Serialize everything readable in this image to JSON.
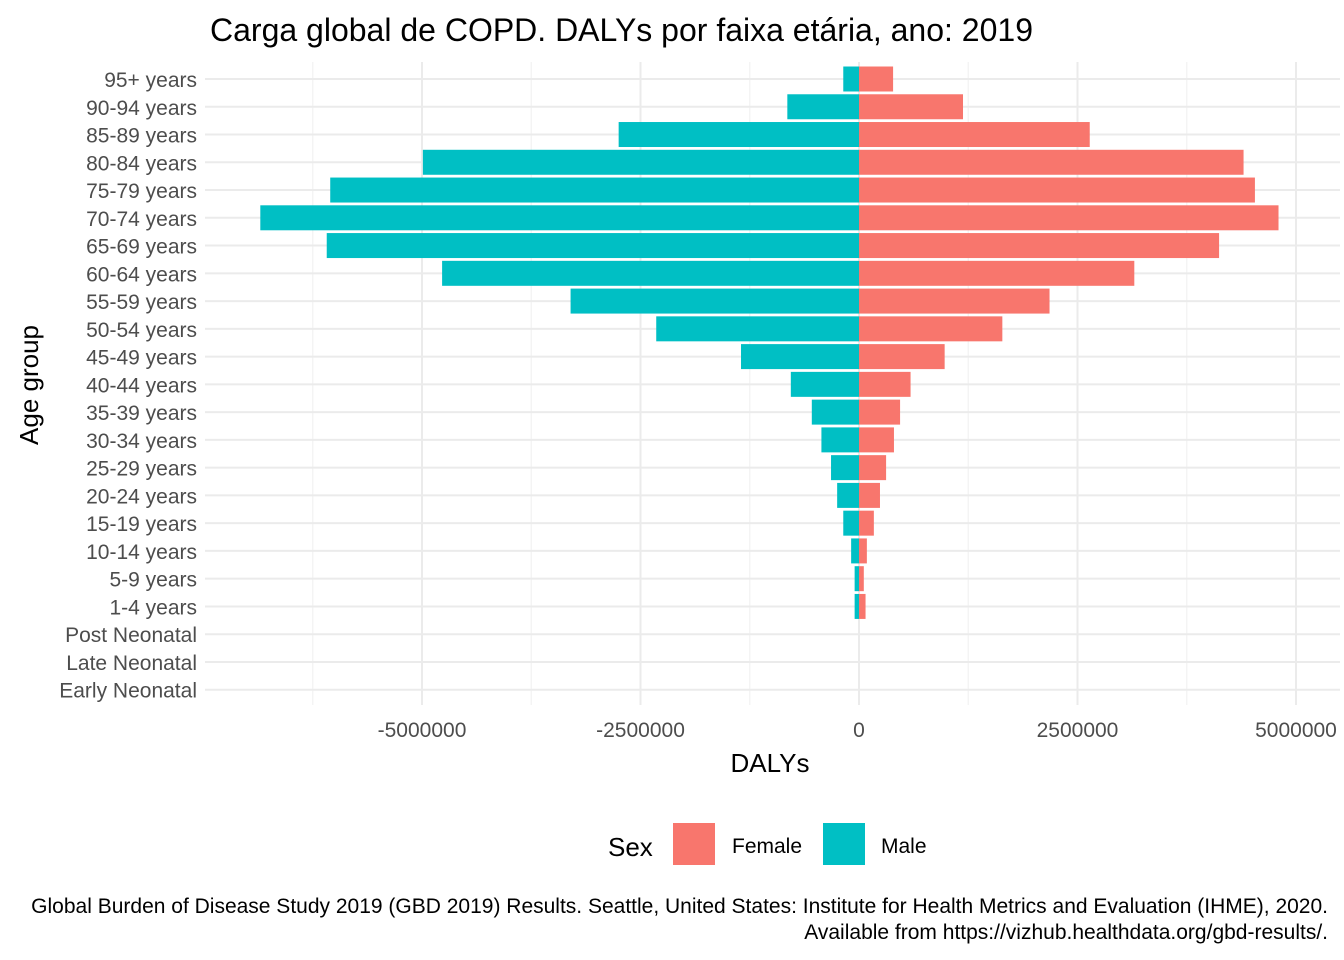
{
  "chart_data": {
    "type": "bar",
    "orientation": "horizontal",
    "title": "Carga global de COPD. DALYs por faixa etária, ano: 2019",
    "xlabel": "DALYs",
    "ylabel": "Age group",
    "xlim": [
      -7000000,
      5100000
    ],
    "xticks": [
      -5000000,
      -2500000,
      0,
      2500000,
      5000000
    ],
    "xtick_labels": [
      "-5000000",
      "-2500000",
      "0",
      "2500000",
      "5000000"
    ],
    "grid": true,
    "legend_position": "bottom",
    "legend_title": "Sex",
    "categories": [
      "Early Neonatal",
      "Late Neonatal",
      "Post Neonatal",
      "1-4 years",
      "5-9 years",
      "10-14 years",
      "15-19 years",
      "20-24 years",
      "25-29 years",
      "30-34 years",
      "35-39 years",
      "40-44 years",
      "45-49 years",
      "50-54 years",
      "55-59 years",
      "60-64 years",
      "65-69 years",
      "70-74 years",
      "75-79 years",
      "80-84 years",
      "85-89 years",
      "90-94 years",
      "95+ years"
    ],
    "series": [
      {
        "name": "Female",
        "color": "#F8766D",
        "values": [
          0,
          0,
          0,
          75000,
          55000,
          90000,
          170000,
          240000,
          310000,
          400000,
          470000,
          590000,
          980000,
          1640000,
          2180000,
          3150000,
          4120000,
          4800000,
          4530000,
          4400000,
          2640000,
          1190000,
          390000
        ]
      },
      {
        "name": "Male",
        "color": "#00BFC4",
        "values": [
          0,
          0,
          0,
          -50000,
          -50000,
          -90000,
          -180000,
          -250000,
          -320000,
          -430000,
          -540000,
          -780000,
          -1350000,
          -2320000,
          -3300000,
          -4770000,
          -6090000,
          -6850000,
          -6050000,
          -4990000,
          -2750000,
          -820000,
          -180000
        ]
      }
    ]
  },
  "caption": {
    "line1": "Global Burden of Disease Study 2019 (GBD 2019) Results. Seattle, United States: Institute for Health Metrics and Evaluation (IHME), 2020.",
    "line2": "Available from https://vizhub.healthdata.org/gbd-results/."
  }
}
